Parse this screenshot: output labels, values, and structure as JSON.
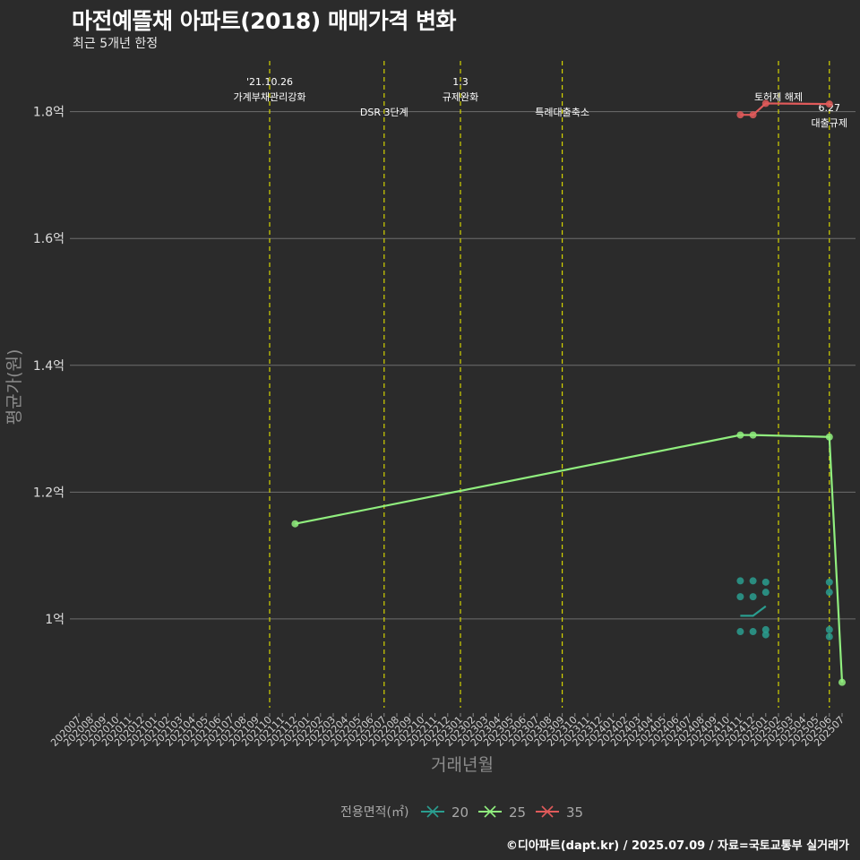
{
  "title": "마전예뜰채 아파트(2018) 매매가격 변화",
  "subtitle": "최근 5개년 한정",
  "caption": "©디아파트(dapt.kr) / 2025.07.09 / 자료=국토교통부 실거래가",
  "colors": {
    "background": "#2b2b2b",
    "grid": "#6e6e6e",
    "event_line": "#d4d400",
    "s20": "#2a9d8f",
    "s25": "#90ee7e",
    "s35": "#e05a5a"
  },
  "chart_data": {
    "type": "line",
    "xlabel": "거래년월",
    "ylabel": "평균가(원)",
    "ylim": [
      0.86,
      1.88
    ],
    "y_ticks": [
      {
        "value": 1.0,
        "label": "1억"
      },
      {
        "value": 1.2,
        "label": "1.2억"
      },
      {
        "value": 1.4,
        "label": "1.4억"
      },
      {
        "value": 1.6,
        "label": "1.6억"
      },
      {
        "value": 1.8,
        "label": "1.8억"
      }
    ],
    "x_categories": [
      "202007",
      "202008",
      "202009",
      "202010",
      "202011",
      "202012",
      "202101",
      "202102",
      "202103",
      "202104",
      "202105",
      "202106",
      "202107",
      "202108",
      "202109",
      "202110",
      "202111",
      "202112",
      "202201",
      "202202",
      "202203",
      "202204",
      "202205",
      "202206",
      "202207",
      "202208",
      "202209",
      "202210",
      "202211",
      "202212",
      "202301",
      "202302",
      "202303",
      "202304",
      "202305",
      "202306",
      "202307",
      "202308",
      "202309",
      "202310",
      "202311",
      "202312",
      "202401",
      "202402",
      "202403",
      "202404",
      "202405",
      "202406",
      "202407",
      "202408",
      "202409",
      "202410",
      "202411",
      "202412",
      "202501",
      "202502",
      "202503",
      "202504",
      "202505",
      "202506",
      "202507"
    ],
    "events": [
      {
        "x": "202110",
        "label": "'21.10.26\n가계부채관리강화",
        "row": 0
      },
      {
        "x": "202207",
        "label": "DSR 3단계",
        "row": 2
      },
      {
        "x": "202301",
        "label": "1.3\n규제완화",
        "row": 0
      },
      {
        "x": "202309",
        "label": "특례대출축소",
        "row": 2
      },
      {
        "x": "202502",
        "label": "토허제 해제",
        "row": 1
      },
      {
        "x": "202506",
        "label": "6.27\n대출규제",
        "row": 1.7
      }
    ],
    "legend_title": "전용면적(㎡)",
    "series": [
      {
        "name": "20",
        "color": "#2a9d8f",
        "line": [
          [
            "202411",
            1.005
          ],
          [
            "202412",
            1.005
          ],
          [
            "202501",
            1.02
          ]
        ],
        "points": [
          [
            "202411",
            0.98
          ],
          [
            "202411",
            1.035
          ],
          [
            "202411",
            1.06
          ],
          [
            "202412",
            0.98
          ],
          [
            "202412",
            1.035
          ],
          [
            "202412",
            1.06
          ],
          [
            "202501",
            0.975
          ],
          [
            "202501",
            0.983
          ],
          [
            "202501",
            1.042
          ],
          [
            "202501",
            1.058
          ],
          [
            "202506",
            0.972
          ],
          [
            "202506",
            0.983
          ],
          [
            "202506",
            1.042
          ],
          [
            "202506",
            1.058
          ]
        ]
      },
      {
        "name": "25",
        "color": "#90ee7e",
        "line": [
          [
            "202112",
            1.15
          ],
          [
            "202411",
            1.29
          ],
          [
            "202412",
            1.29
          ],
          [
            "202506",
            1.287
          ],
          [
            "202507",
            0.9
          ]
        ],
        "points": [
          [
            "202112",
            1.15
          ],
          [
            "202411",
            1.29
          ],
          [
            "202412",
            1.29
          ],
          [
            "202506",
            1.287
          ],
          [
            "202507",
            0.9
          ]
        ]
      },
      {
        "name": "35",
        "color": "#e05a5a",
        "line": [
          [
            "202411",
            1.795
          ],
          [
            "202412",
            1.795
          ],
          [
            "202501",
            1.813
          ],
          [
            "202506",
            1.812
          ]
        ],
        "points": [
          [
            "202411",
            1.795
          ],
          [
            "202412",
            1.795
          ],
          [
            "202501",
            1.813
          ],
          [
            "202506",
            1.812
          ]
        ]
      }
    ]
  }
}
